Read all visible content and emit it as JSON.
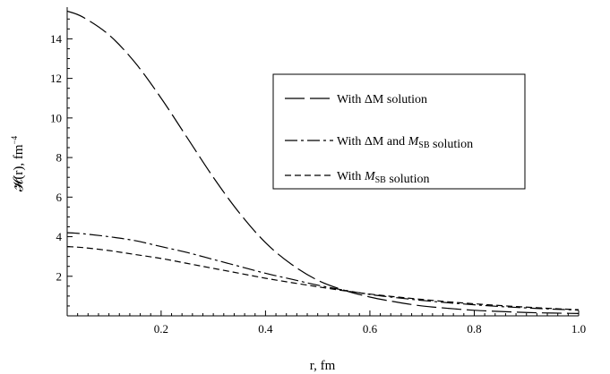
{
  "chart_data": {
    "type": "line",
    "xlabel": "r, fm",
    "ylabel": {
      "main": "𝓗(r), fm",
      "sup": "−4"
    },
    "xlim": [
      0.02,
      1.0
    ],
    "ylim": [
      0,
      15.6
    ],
    "xticks": [
      0.2,
      0.4,
      0.6,
      0.8,
      1.0
    ],
    "xtick_labels": [
      "0.2",
      "0.4",
      "0.6",
      "0.8",
      "1.0"
    ],
    "yticks": [
      2,
      4,
      6,
      8,
      10,
      12,
      14
    ],
    "ytick_labels": [
      "2",
      "4",
      "6",
      "8",
      "10",
      "12",
      "14"
    ],
    "grid": false,
    "legend_position": "top-right",
    "series": [
      {
        "name": "With ΔM solution",
        "legend_parts": [
          {
            "t": "With ΔM solution"
          }
        ],
        "dash": "long",
        "x": [
          0.02,
          0.05,
          0.1,
          0.15,
          0.2,
          0.25,
          0.3,
          0.35,
          0.4,
          0.45,
          0.5,
          0.55,
          0.6,
          0.65,
          0.7,
          0.75,
          0.8,
          0.85,
          0.9,
          0.95,
          1.0
        ],
        "y": [
          15.4,
          15.1,
          14.2,
          12.8,
          11.0,
          9.0,
          7.0,
          5.2,
          3.7,
          2.6,
          1.8,
          1.3,
          0.95,
          0.7,
          0.5,
          0.38,
          0.28,
          0.22,
          0.17,
          0.14,
          0.12
        ]
      },
      {
        "name": "With ΔM and M_SB solution",
        "legend_parts": [
          {
            "t": "With ΔM and "
          },
          {
            "t": "M",
            "italic": true
          },
          {
            "t": "SB",
            "sub": true
          },
          {
            "t": " solution"
          }
        ],
        "dash": "dashdot",
        "x": [
          0.02,
          0.05,
          0.1,
          0.15,
          0.2,
          0.25,
          0.3,
          0.35,
          0.4,
          0.45,
          0.5,
          0.55,
          0.6,
          0.65,
          0.7,
          0.75,
          0.8,
          0.85,
          0.9,
          0.95,
          1.0
        ],
        "y": [
          4.2,
          4.15,
          4.0,
          3.8,
          3.5,
          3.2,
          2.85,
          2.5,
          2.15,
          1.85,
          1.55,
          1.3,
          1.08,
          0.92,
          0.78,
          0.66,
          0.56,
          0.47,
          0.4,
          0.34,
          0.29
        ]
      },
      {
        "name": "With M_SB solution",
        "legend_parts": [
          {
            "t": "With "
          },
          {
            "t": "M",
            "italic": true
          },
          {
            "t": "SB",
            "sub": true
          },
          {
            "t": " solution"
          }
        ],
        "dash": "short",
        "x": [
          0.02,
          0.05,
          0.1,
          0.15,
          0.2,
          0.25,
          0.3,
          0.35,
          0.4,
          0.45,
          0.5,
          0.55,
          0.6,
          0.65,
          0.7,
          0.75,
          0.8,
          0.85,
          0.9,
          0.95,
          1.0
        ],
        "y": [
          3.5,
          3.45,
          3.3,
          3.1,
          2.9,
          2.65,
          2.4,
          2.15,
          1.9,
          1.68,
          1.47,
          1.27,
          1.1,
          0.96,
          0.83,
          0.71,
          0.61,
          0.52,
          0.44,
          0.37,
          0.31
        ]
      }
    ]
  }
}
